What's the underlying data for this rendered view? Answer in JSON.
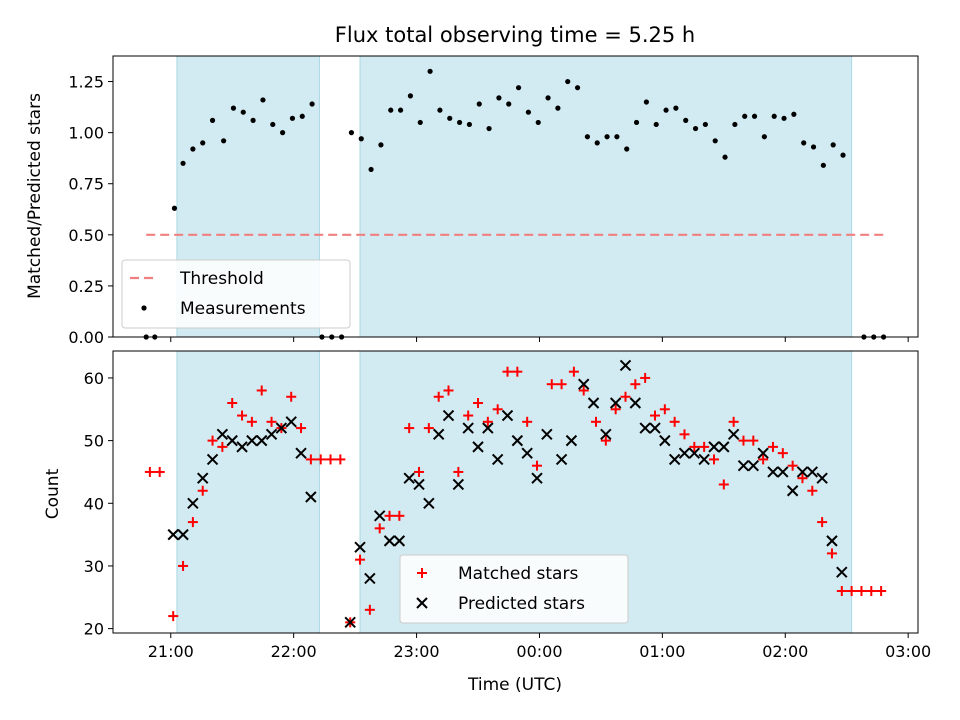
{
  "colors": {
    "shade": "#add8e6",
    "threshold": "#f08080",
    "measurement": "#000000",
    "matched": "#ff0000",
    "predicted": "#000000"
  },
  "chart_data": [
    {
      "type": "scatter",
      "panel": "top",
      "title": "Flux total observing time = 5.25 h",
      "xlabel": "",
      "ylabel": "Matched/Predicted stars",
      "x_unit": "hours after 00:00 UTC (negative = previous day)",
      "xlim": [
        -3.47,
        3.08
      ],
      "ylim": [
        0.0,
        1.375
      ],
      "yticks": [
        0.0,
        0.25,
        0.5,
        0.75,
        1.0,
        1.25
      ],
      "ytick_labels": [
        "0.00",
        "0.25",
        "0.50",
        "0.75",
        "1.00",
        "1.25"
      ],
      "shaded_intervals": [
        [
          -2.95,
          -1.79
        ],
        [
          -1.46,
          2.54
        ]
      ],
      "threshold": {
        "value": 0.5,
        "x_range": [
          -3.2,
          2.8
        ]
      },
      "legend": {
        "position": "lower-left",
        "entries": [
          "Threshold",
          "Measurements"
        ]
      },
      "series": [
        {
          "name": "Measurements",
          "points": [
            [
              -3.2,
              0.0
            ],
            [
              -3.13,
              0.0
            ],
            [
              -2.97,
              0.63
            ],
            [
              -2.9,
              0.85
            ],
            [
              -2.82,
              0.92
            ],
            [
              -2.74,
              0.95
            ],
            [
              -2.66,
              1.06
            ],
            [
              -2.57,
              0.96
            ],
            [
              -2.49,
              1.12
            ],
            [
              -2.41,
              1.1
            ],
            [
              -2.33,
              1.06
            ],
            [
              -2.25,
              1.16
            ],
            [
              -2.17,
              1.04
            ],
            [
              -2.09,
              1.0
            ],
            [
              -2.01,
              1.07
            ],
            [
              -1.93,
              1.08
            ],
            [
              -1.85,
              1.14
            ],
            [
              -1.77,
              0.0
            ],
            [
              -1.69,
              0.0
            ],
            [
              -1.61,
              0.0
            ],
            [
              -1.53,
              1.0
            ],
            [
              -1.45,
              0.97
            ],
            [
              -1.37,
              0.82
            ],
            [
              -1.29,
              0.94
            ],
            [
              -1.21,
              1.11
            ],
            [
              -1.13,
              1.11
            ],
            [
              -1.05,
              1.18
            ],
            [
              -0.97,
              1.05
            ],
            [
              -0.89,
              1.3
            ],
            [
              -0.81,
              1.11
            ],
            [
              -0.73,
              1.07
            ],
            [
              -0.65,
              1.05
            ],
            [
              -0.57,
              1.04
            ],
            [
              -0.49,
              1.14
            ],
            [
              -0.41,
              1.02
            ],
            [
              -0.33,
              1.17
            ],
            [
              -0.25,
              1.14
            ],
            [
              -0.17,
              1.22
            ],
            [
              -0.09,
              1.1
            ],
            [
              -0.01,
              1.05
            ],
            [
              0.07,
              1.17
            ],
            [
              0.15,
              1.12
            ],
            [
              0.23,
              1.25
            ],
            [
              0.31,
              1.22
            ],
            [
              0.39,
              0.98
            ],
            [
              0.47,
              0.95
            ],
            [
              0.55,
              0.98
            ],
            [
              0.63,
              0.98
            ],
            [
              0.71,
              0.92
            ],
            [
              0.79,
              1.05
            ],
            [
              0.87,
              1.15
            ],
            [
              0.95,
              1.04
            ],
            [
              1.03,
              1.11
            ],
            [
              1.11,
              1.12
            ],
            [
              1.19,
              1.06
            ],
            [
              1.27,
              1.02
            ],
            [
              1.35,
              1.04
            ],
            [
              1.43,
              0.96
            ],
            [
              1.51,
              0.88
            ],
            [
              1.59,
              1.04
            ],
            [
              1.67,
              1.08
            ],
            [
              1.75,
              1.08
            ],
            [
              1.83,
              0.98
            ],
            [
              1.91,
              1.08
            ],
            [
              1.99,
              1.07
            ],
            [
              2.07,
              1.09
            ],
            [
              2.15,
              0.95
            ],
            [
              2.23,
              0.93
            ],
            [
              2.31,
              0.84
            ],
            [
              2.39,
              0.94
            ],
            [
              2.47,
              0.89
            ],
            [
              2.64,
              0.0
            ],
            [
              2.72,
              0.0
            ],
            [
              2.8,
              0.0
            ]
          ]
        }
      ]
    },
    {
      "type": "scatter",
      "panel": "bottom",
      "title": "",
      "xlabel": "Time (UTC)",
      "ylabel": "Count",
      "x_unit": "hours after 00:00 UTC (negative = previous day)",
      "xlim": [
        -3.47,
        3.08
      ],
      "ylim": [
        19.3,
        64.3
      ],
      "yticks": [
        20,
        30,
        40,
        50,
        60
      ],
      "ytick_labels": [
        "20",
        "30",
        "40",
        "50",
        "60"
      ],
      "xticks": [
        -3,
        -2,
        -1,
        0,
        1,
        2,
        3
      ],
      "xtick_labels": [
        "21:00",
        "22:00",
        "23:00",
        "00:00",
        "01:00",
        "02:00",
        "03:00"
      ],
      "shaded_intervals": [
        [
          -2.95,
          -1.79
        ],
        [
          -1.46,
          2.54
        ]
      ],
      "legend": {
        "position": "bottom-center",
        "entries": [
          "Matched stars",
          "Predicted stars"
        ]
      },
      "series": [
        {
          "name": "Matched stars",
          "marker": "+",
          "points": [
            [
              -3.17,
              45
            ],
            [
              -3.09,
              45
            ],
            [
              -2.98,
              22
            ],
            [
              -2.9,
              30
            ],
            [
              -2.82,
              37
            ],
            [
              -2.74,
              42
            ],
            [
              -2.66,
              50
            ],
            [
              -2.58,
              49
            ],
            [
              -2.5,
              56
            ],
            [
              -2.42,
              54
            ],
            [
              -2.34,
              53
            ],
            [
              -2.26,
              58
            ],
            [
              -2.18,
              53
            ],
            [
              -2.1,
              52
            ],
            [
              -2.02,
              57
            ],
            [
              -1.94,
              52
            ],
            [
              -1.86,
              47
            ],
            [
              -1.78,
              47
            ],
            [
              -1.7,
              47
            ],
            [
              -1.62,
              47
            ],
            [
              -1.54,
              21
            ],
            [
              -1.46,
              31
            ],
            [
              -1.38,
              23
            ],
            [
              -1.3,
              36
            ],
            [
              -1.22,
              38
            ],
            [
              -1.14,
              38
            ],
            [
              -1.06,
              52
            ],
            [
              -0.98,
              45
            ],
            [
              -0.9,
              52
            ],
            [
              -0.82,
              57
            ],
            [
              -0.74,
              58
            ],
            [
              -0.66,
              45
            ],
            [
              -0.58,
              54
            ],
            [
              -0.5,
              56
            ],
            [
              -0.42,
              53
            ],
            [
              -0.34,
              55
            ],
            [
              -0.26,
              61
            ],
            [
              -0.18,
              61
            ],
            [
              -0.1,
              53
            ],
            [
              -0.02,
              46
            ],
            [
              0.1,
              59
            ],
            [
              0.18,
              59
            ],
            [
              0.28,
              61
            ],
            [
              0.36,
              58
            ],
            [
              0.46,
              53
            ],
            [
              0.54,
              50
            ],
            [
              0.62,
              55
            ],
            [
              0.7,
              57
            ],
            [
              0.78,
              59
            ],
            [
              0.86,
              60
            ],
            [
              0.94,
              54
            ],
            [
              1.02,
              55
            ],
            [
              1.1,
              53
            ],
            [
              1.18,
              51
            ],
            [
              1.26,
              49
            ],
            [
              1.34,
              49
            ],
            [
              1.42,
              47
            ],
            [
              1.5,
              43
            ],
            [
              1.58,
              53
            ],
            [
              1.66,
              50
            ],
            [
              1.74,
              50
            ],
            [
              1.82,
              47
            ],
            [
              1.9,
              49
            ],
            [
              1.98,
              48
            ],
            [
              2.06,
              46
            ],
            [
              2.14,
              44
            ],
            [
              2.22,
              42
            ],
            [
              2.3,
              37
            ],
            [
              2.38,
              32
            ],
            [
              2.46,
              26
            ],
            [
              2.54,
              26
            ],
            [
              2.62,
              26
            ],
            [
              2.7,
              26
            ],
            [
              2.78,
              26
            ]
          ]
        },
        {
          "name": "Predicted stars",
          "marker": "x",
          "points": [
            [
              -2.98,
              35
            ],
            [
              -2.9,
              35
            ],
            [
              -2.82,
              40
            ],
            [
              -2.74,
              44
            ],
            [
              -2.66,
              47
            ],
            [
              -2.58,
              51
            ],
            [
              -2.5,
              50
            ],
            [
              -2.42,
              49
            ],
            [
              -2.34,
              50
            ],
            [
              -2.26,
              50
            ],
            [
              -2.18,
              51
            ],
            [
              -2.1,
              52
            ],
            [
              -2.02,
              53
            ],
            [
              -1.94,
              48
            ],
            [
              -1.86,
              41
            ],
            [
              -1.54,
              21
            ],
            [
              -1.46,
              33
            ],
            [
              -1.38,
              28
            ],
            [
              -1.3,
              38
            ],
            [
              -1.22,
              34
            ],
            [
              -1.14,
              34
            ],
            [
              -1.06,
              44
            ],
            [
              -0.98,
              43
            ],
            [
              -0.9,
              40
            ],
            [
              -0.82,
              51
            ],
            [
              -0.74,
              54
            ],
            [
              -0.66,
              43
            ],
            [
              -0.58,
              52
            ],
            [
              -0.5,
              49
            ],
            [
              -0.42,
              52
            ],
            [
              -0.34,
              47
            ],
            [
              -0.26,
              54
            ],
            [
              -0.18,
              50
            ],
            [
              -0.1,
              48
            ],
            [
              -0.02,
              44
            ],
            [
              0.06,
              51
            ],
            [
              0.18,
              47
            ],
            [
              0.26,
              50
            ],
            [
              0.36,
              59
            ],
            [
              0.44,
              56
            ],
            [
              0.54,
              51
            ],
            [
              0.62,
              56
            ],
            [
              0.7,
              62
            ],
            [
              0.78,
              56
            ],
            [
              0.86,
              52
            ],
            [
              0.94,
              52
            ],
            [
              1.02,
              50
            ],
            [
              1.1,
              47
            ],
            [
              1.18,
              48
            ],
            [
              1.26,
              48
            ],
            [
              1.34,
              47
            ],
            [
              1.42,
              49
            ],
            [
              1.5,
              49
            ],
            [
              1.58,
              51
            ],
            [
              1.66,
              46
            ],
            [
              1.74,
              46
            ],
            [
              1.82,
              48
            ],
            [
              1.9,
              45
            ],
            [
              1.98,
              45
            ],
            [
              2.06,
              42
            ],
            [
              2.14,
              45
            ],
            [
              2.22,
              45
            ],
            [
              2.3,
              44
            ],
            [
              2.38,
              34
            ],
            [
              2.46,
              29
            ]
          ]
        }
      ]
    }
  ]
}
